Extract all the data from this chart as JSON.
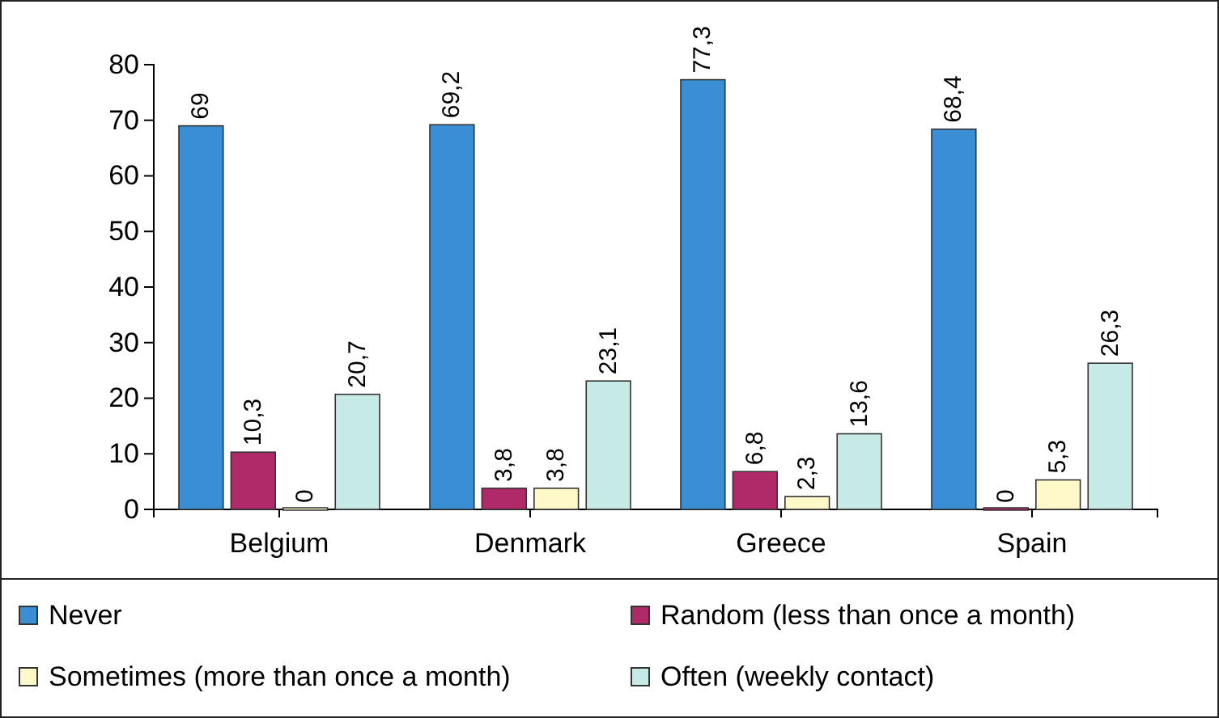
{
  "chart_data": {
    "type": "bar",
    "categories": [
      "Belgium",
      "Denmark",
      "Greece",
      "Spain"
    ],
    "series": [
      {
        "name": "Never",
        "color": "#3a8fd4",
        "values": [
          69,
          69.2,
          77.3,
          68.4
        ],
        "value_labels": [
          "69",
          "69,2",
          "77,3",
          "68,4"
        ]
      },
      {
        "name": "Random (less than once a month)",
        "color": "#b02a6a",
        "values": [
          10.3,
          3.8,
          6.8,
          0
        ],
        "value_labels": [
          "10,3",
          "3,8",
          "6,8",
          "0"
        ]
      },
      {
        "name": "Sometimes (more than once a month)",
        "color": "#fff8c8",
        "values": [
          0,
          3.8,
          2.3,
          5.3
        ],
        "value_labels": [
          "0",
          "3,8",
          "2,3",
          "5,3"
        ]
      },
      {
        "name": "Often (weekly contact)",
        "color": "#c6ebe6",
        "values": [
          20.7,
          23.1,
          13.6,
          26.3
        ],
        "value_labels": [
          "20,7",
          "23,1",
          "13,6",
          "26,3"
        ]
      }
    ],
    "ylim": [
      0,
      80
    ],
    "yticks": [
      0,
      10,
      20,
      30,
      40,
      50,
      60,
      70,
      80
    ],
    "legend": "bottom"
  }
}
